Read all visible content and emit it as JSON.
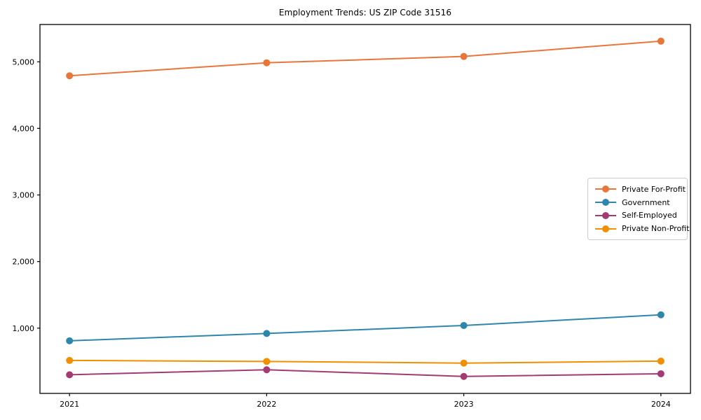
{
  "chart_data": {
    "type": "line",
    "title": "Employment Trends: US ZIP Code 31516",
    "x": [
      2021,
      2022,
      2023,
      2024
    ],
    "x_tick_labels": [
      "2021",
      "2022",
      "2023",
      "2024"
    ],
    "y_ticks": [
      1000,
      2000,
      3000,
      4000,
      5000
    ],
    "y_tick_labels": [
      "1,000",
      "2,000",
      "3,000",
      "4,000",
      "5,000"
    ],
    "series": [
      {
        "name": "Private For-Profit",
        "color": "#E8763A",
        "values": [
          4790,
          4985,
          5080,
          5310
        ]
      },
      {
        "name": "Government",
        "color": "#2E86AB",
        "values": [
          810,
          920,
          1040,
          1200
        ]
      },
      {
        "name": "Self-Employed",
        "color": "#A23B72",
        "values": [
          300,
          375,
          275,
          315
        ]
      },
      {
        "name": "Private Non-Profit",
        "color": "#F18F01",
        "values": [
          515,
          500,
          475,
          505
        ]
      }
    ],
    "xlim": [
      2020.85,
      2024.15
    ],
    "ylim": [
      20,
      5560
    ],
    "grid": false,
    "legend_position": "center-right",
    "marker": "circle",
    "background_color": "#ffffff",
    "axis_color": "#000000",
    "tick_label_color": "#000000"
  }
}
